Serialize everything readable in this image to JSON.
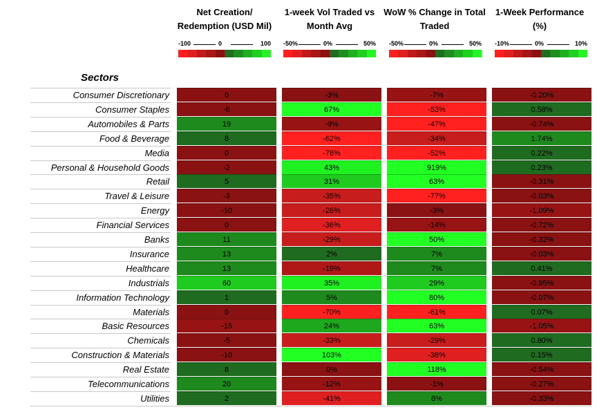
{
  "chart_data": {
    "type": "heatmap",
    "row_header": "Sectors",
    "columns": [
      {
        "title": "Net Creation/ Redemption (USD Mil)",
        "scale": [
          "-100",
          "0",
          "100"
        ],
        "range": [
          -100,
          100
        ]
      },
      {
        "title": "1-week Vol Traded vs Month Avg",
        "scale": [
          "-50%",
          "0%",
          "50%"
        ],
        "range": [
          -50,
          50
        ]
      },
      {
        "title": "WoW % Change in Total Traded",
        "scale": [
          "-50%",
          "0%",
          "50%"
        ],
        "range": [
          -50,
          50
        ]
      },
      {
        "title": "1-Week Performance (%)",
        "scale": [
          "-10%",
          "0%",
          "10%"
        ],
        "range": [
          -10,
          10
        ]
      }
    ],
    "rows": [
      {
        "sector": "Consumer Discretionary",
        "values": [
          "0",
          "-3%",
          "-7%",
          "-0.20%"
        ]
      },
      {
        "sector": "Consumer Staples",
        "values": [
          "-6",
          "67%",
          "-53%",
          "0.58%"
        ]
      },
      {
        "sector": "Automobiles & Parts",
        "values": [
          "19",
          "-9%",
          "-47%",
          "-0.74%"
        ]
      },
      {
        "sector": "Food & Beverage",
        "values": [
          "8",
          "-62%",
          "-34%",
          "1.74%"
        ]
      },
      {
        "sector": "Media",
        "values": [
          "0",
          "-78%",
          "-52%",
          "0.22%"
        ]
      },
      {
        "sector": "Personal & Household Goods",
        "values": [
          "-2",
          "43%",
          "919%",
          "0.23%"
        ]
      },
      {
        "sector": "Retail",
        "values": [
          "5",
          "31%",
          "63%",
          "-0.31%"
        ]
      },
      {
        "sector": "Travel & Leisure",
        "values": [
          "-3",
          "-35%",
          "-77%",
          "-0.03%"
        ]
      },
      {
        "sector": "Energy",
        "values": [
          "-10",
          "-26%",
          "-3%",
          "-1.09%"
        ]
      },
      {
        "sector": "Financial Services",
        "values": [
          "0",
          "-36%",
          "-14%",
          "-0.72%"
        ]
      },
      {
        "sector": "Banks",
        "values": [
          "11",
          "-29%",
          "50%",
          "-0.32%"
        ]
      },
      {
        "sector": "Insurance",
        "values": [
          "13",
          "2%",
          "7%",
          "-0.03%"
        ]
      },
      {
        "sector": "Healthcare",
        "values": [
          "13",
          "-19%",
          "7%",
          "0.41%"
        ]
      },
      {
        "sector": "Industrials",
        "values": [
          "60",
          "35%",
          "29%",
          "-0.95%"
        ]
      },
      {
        "sector": "Information Technology",
        "values": [
          "1",
          "5%",
          "80%",
          "-0.07%"
        ]
      },
      {
        "sector": "Materials",
        "values": [
          "0",
          "-70%",
          "-61%",
          "0.07%"
        ]
      },
      {
        "sector": "Basic Resources",
        "values": [
          "-15",
          "24%",
          "63%",
          "-1.05%"
        ]
      },
      {
        "sector": "Chemicals",
        "values": [
          "-5",
          "-33%",
          "-29%",
          "0.80%"
        ]
      },
      {
        "sector": "Construction & Materials",
        "values": [
          "-10",
          "103%",
          "-38%",
          "0.15%"
        ]
      },
      {
        "sector": "Real Estate",
        "values": [
          "8",
          "0%",
          "118%",
          "-0.54%"
        ]
      },
      {
        "sector": "Telecommunications",
        "values": [
          "20",
          "-12%",
          "-1%",
          "-0.27%"
        ]
      },
      {
        "sector": "Utilities",
        "values": [
          "2",
          "-41%",
          "8%",
          "-0.33%"
        ]
      }
    ],
    "palette": {
      "negative": [
        "#ff2020",
        "#e02020",
        "#c81d1d",
        "#b01818",
        "#981414",
        "#8a1212"
      ],
      "positive": [
        "#1f6b1f",
        "#1e8a1e",
        "#1ea81e",
        "#1ecb1e",
        "#1ff01f",
        "#22ff22"
      ],
      "scale_bar": [
        "#ff1f1f",
        "#e01f1f",
        "#c01a1a",
        "#a81616",
        "#8a1212",
        "#1e6e1e",
        "#1e8f1e",
        "#1eb01e",
        "#1fd01f",
        "#22f522"
      ]
    }
  }
}
